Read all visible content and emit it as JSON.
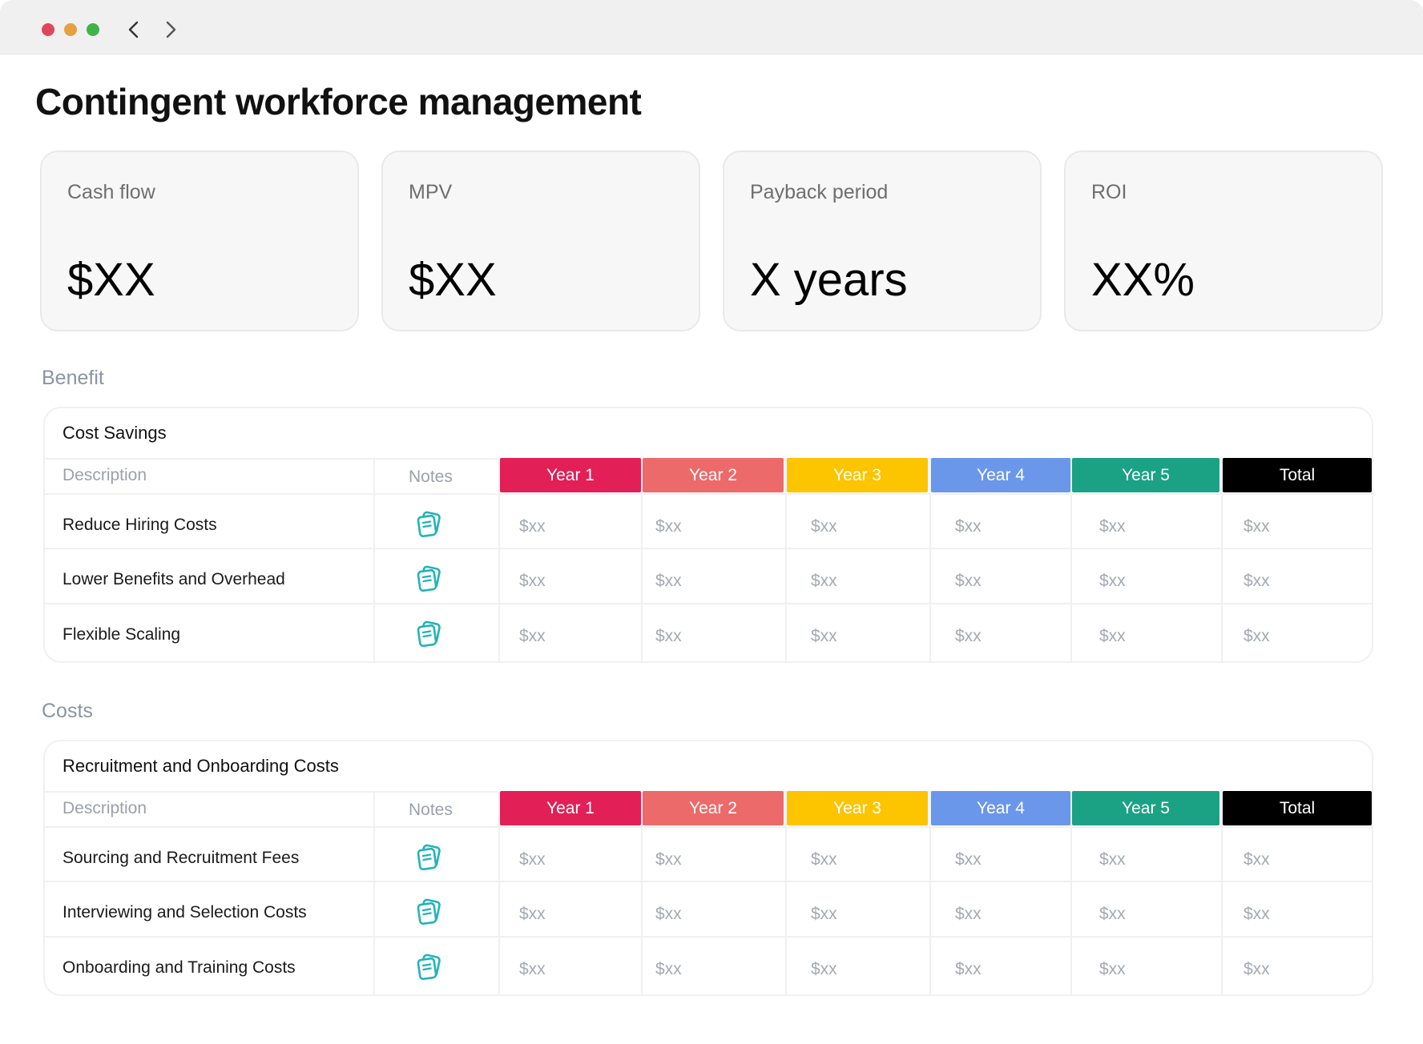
{
  "page_title": "Contingent workforce management",
  "colors": {
    "year1": "#e21f57",
    "year2": "#ec6a6a",
    "year3": "#fdc400",
    "year4": "#6b97ea",
    "year5": "#1ba285",
    "total": "#000000",
    "note_icon": "#22b3b8"
  },
  "kpis": [
    {
      "label": "Cash flow",
      "value": "$XX"
    },
    {
      "label": "MPV",
      "value": "$XX"
    },
    {
      "label": "Payback period",
      "value": "X years"
    },
    {
      "label": "ROI",
      "value": "XX%"
    }
  ],
  "sections": [
    {
      "label": "Benefit",
      "table_title": "Cost Savings",
      "columns": {
        "description": "Description",
        "notes": "Notes",
        "years": [
          "Year 1",
          "Year 2",
          "Year 3",
          "Year 4",
          "Year 5",
          "Total"
        ]
      },
      "rows": [
        {
          "label": "Reduce Hiring Costs",
          "cells": [
            "$xx",
            "$xx",
            "$xx",
            "$xx",
            "$xx",
            "$xx"
          ]
        },
        {
          "label": "Lower Benefits and Overhead",
          "cells": [
            "$xx",
            "$xx",
            "$xx",
            "$xx",
            "$xx",
            "$xx"
          ]
        },
        {
          "label": "Flexible Scaling",
          "cells": [
            "$xx",
            "$xx",
            "$xx",
            "$xx",
            "$xx",
            "$xx"
          ]
        }
      ]
    },
    {
      "label": "Costs",
      "table_title": "Recruitment and Onboarding Costs",
      "columns": {
        "description": "Description",
        "notes": "Notes",
        "years": [
          "Year 1",
          "Year 2",
          "Year 3",
          "Year 4",
          "Year 5",
          "Total"
        ]
      },
      "rows": [
        {
          "label": "Sourcing and Recruitment Fees",
          "cells": [
            "$xx",
            "$xx",
            "$xx",
            "$xx",
            "$xx",
            "$xx"
          ]
        },
        {
          "label": "Interviewing and Selection Costs",
          "cells": [
            "$xx",
            "$xx",
            "$xx",
            "$xx",
            "$xx",
            "$xx"
          ]
        },
        {
          "label": "Onboarding and Training Costs",
          "cells": [
            "$xx",
            "$xx",
            "$xx",
            "$xx",
            "$xx",
            "$xx"
          ]
        }
      ]
    }
  ]
}
